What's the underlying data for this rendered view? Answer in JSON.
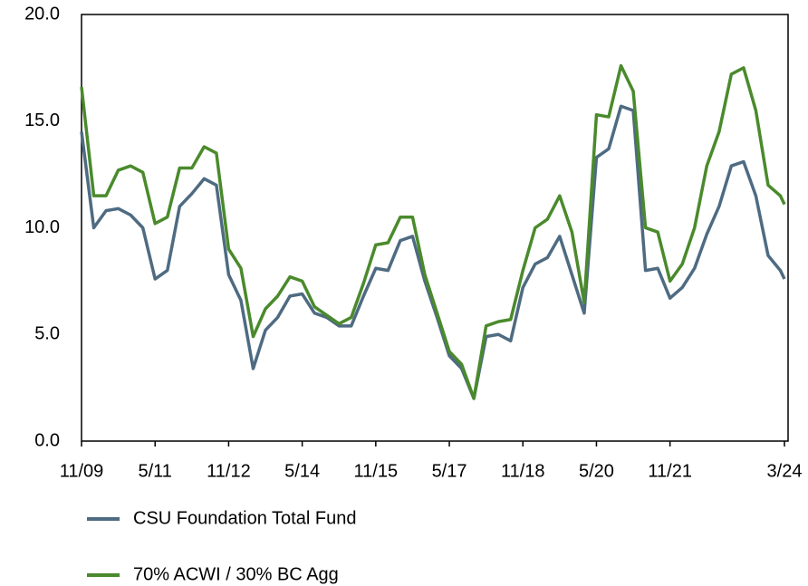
{
  "chart_data": {
    "type": "line",
    "x": [
      0,
      3,
      6,
      9,
      12,
      15,
      18,
      21,
      24,
      27,
      30,
      33,
      36,
      39,
      42,
      45,
      48,
      51,
      54,
      57,
      60,
      63,
      66,
      69,
      72,
      75,
      78,
      81,
      84,
      87,
      90,
      93,
      96,
      99,
      102,
      105,
      108,
      111,
      114,
      117,
      120,
      123,
      126,
      129,
      132,
      135,
      138,
      141,
      144,
      147,
      150,
      153,
      156,
      159,
      162,
      165,
      168,
      171,
      172
    ],
    "series": [
      {
        "name": "CSU Foundation Total Fund",
        "color": "#4e6b82",
        "values": [
          14.5,
          10.0,
          10.8,
          10.9,
          10.6,
          10.0,
          7.6,
          8.0,
          11.0,
          11.6,
          12.3,
          12.0,
          7.8,
          6.6,
          3.4,
          5.2,
          5.8,
          6.8,
          6.9,
          6.0,
          5.8,
          5.4,
          5.4,
          6.8,
          8.1,
          8.0,
          9.4,
          9.6,
          7.5,
          5.8,
          4.0,
          3.4,
          2.0,
          4.9,
          5.0,
          4.7,
          7.2,
          8.3,
          8.6,
          9.6,
          7.8,
          6.0,
          13.3,
          13.7,
          15.7,
          15.5,
          8.0,
          8.1,
          6.7,
          7.2,
          8.1,
          9.7,
          11.0,
          12.9,
          13.1,
          11.5,
          8.7,
          8.0,
          7.6
        ]
      },
      {
        "name": "70% ACWI / 30% BC Agg",
        "color": "#4a8a2c",
        "values": [
          16.6,
          11.5,
          11.5,
          12.7,
          12.9,
          12.6,
          10.2,
          10.5,
          12.8,
          12.8,
          13.8,
          13.5,
          9.0,
          8.1,
          4.9,
          6.2,
          6.8,
          7.7,
          7.5,
          6.3,
          5.9,
          5.5,
          5.8,
          7.4,
          9.2,
          9.3,
          10.5,
          10.5,
          7.8,
          6.0,
          4.2,
          3.6,
          2.0,
          5.4,
          5.6,
          5.7,
          8.0,
          10.0,
          10.4,
          11.5,
          9.8,
          6.5,
          15.3,
          15.2,
          17.6,
          16.4,
          10.0,
          9.8,
          7.5,
          8.3,
          10.0,
          12.9,
          14.5,
          17.2,
          17.5,
          15.5,
          12.0,
          11.5,
          11.1
        ]
      }
    ],
    "xlim": [
      0,
      172
    ],
    "xticks": [
      {
        "value": 0,
        "label": "11/09"
      },
      {
        "value": 18,
        "label": "5/11"
      },
      {
        "value": 36,
        "label": "11/12"
      },
      {
        "value": 54,
        "label": "5/14"
      },
      {
        "value": 72,
        "label": "11/15"
      },
      {
        "value": 90,
        "label": "5/17"
      },
      {
        "value": 108,
        "label": "11/18"
      },
      {
        "value": 126,
        "label": "5/20"
      },
      {
        "value": 144,
        "label": "11/21"
      },
      {
        "value": 172,
        "label": "3/24"
      }
    ],
    "ylim": [
      0,
      20
    ],
    "yticks": [
      {
        "value": 0,
        "label": "0.0"
      },
      {
        "value": 5,
        "label": "5.0"
      },
      {
        "value": 10,
        "label": "10.0"
      },
      {
        "value": 15,
        "label": "15.0"
      },
      {
        "value": 20,
        "label": "20.0"
      }
    ]
  }
}
